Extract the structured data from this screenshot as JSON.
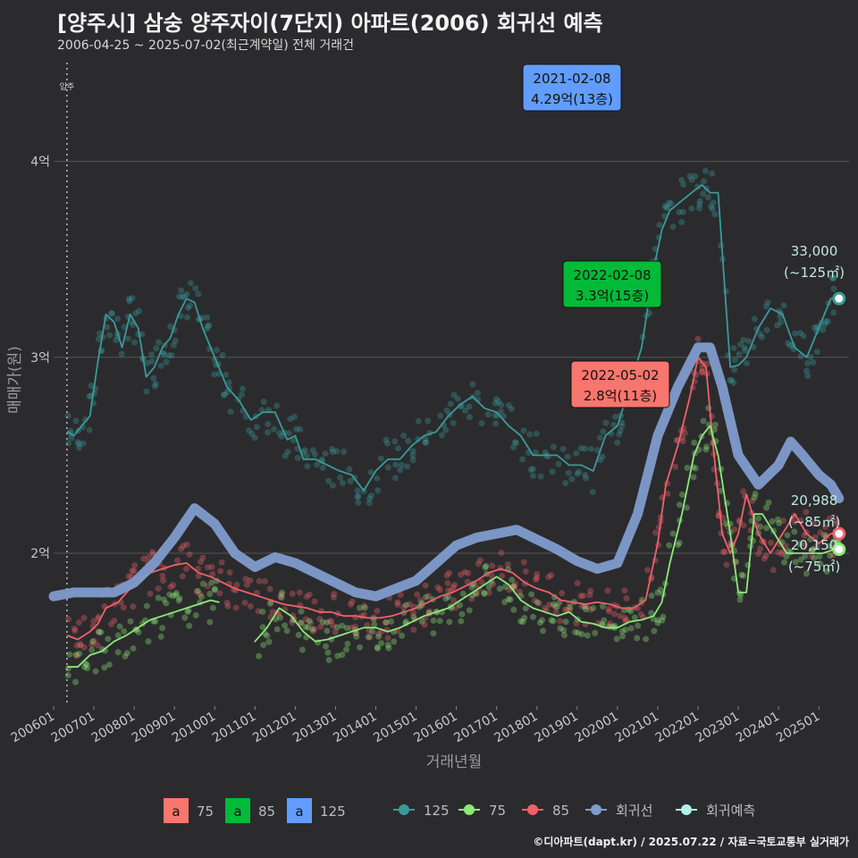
{
  "header": {
    "title": "[양주시] 삼숭 양주자이(7단지) 아파트(2006) 회귀선 예측",
    "subtitle": "2006-04-25 ~ 2025-07-02(최근계약일) 전체 거래건"
  },
  "footer": "©디아파트(dapt.kr) / 2025.07.22 / 자료=국토교통부 실거래가",
  "colors": {
    "s125": "#3a9a9a",
    "s85": "#f0606a",
    "s75": "#8ee87a",
    "regression": "#7f9ccc",
    "pred": "#aef0ea",
    "ann75": "#f8766d",
    "ann85": "#00ba38",
    "ann125": "#619cff"
  },
  "chart_data": {
    "type": "line",
    "title": "[양주시] 삼숭 양주자이(7단지) 아파트(2006) 회귀선 예측",
    "xlabel": "거래년월",
    "ylabel": "매매가(원)",
    "xlim": [
      2006.0,
      2025.75
    ],
    "ylim": [
      1.22,
      4.55
    ],
    "x_ticks": [
      "200601",
      "200701",
      "200801",
      "200901",
      "201001",
      "201101",
      "201201",
      "201301",
      "201401",
      "201501",
      "201601",
      "201701",
      "201801",
      "201901",
      "202001",
      "202101",
      "202201",
      "202301",
      "202401",
      "202501"
    ],
    "y_ticks": [
      {
        "value": 2,
        "label": "2억"
      },
      {
        "value": 3,
        "label": "3억"
      },
      {
        "value": 4,
        "label": "4억"
      }
    ],
    "move_in_marker": {
      "x": 2006.33,
      "label": "입주"
    },
    "series": [
      {
        "name": "125",
        "color_key": "s125",
        "x": [
          2006.35,
          2006.5,
          2006.7,
          2006.9,
          2007.1,
          2007.3,
          2007.5,
          2007.7,
          2007.9,
          2008.1,
          2008.3,
          2008.5,
          2008.7,
          2008.9,
          2009.1,
          2009.3,
          2009.5,
          2009.7,
          2009.9,
          2010.1,
          2010.3,
          2010.6,
          2010.9,
          2011.2,
          2011.5,
          2011.8,
          2012.0,
          2012.2,
          2012.5,
          2012.8,
          2013.1,
          2013.4,
          2013.7,
          2014.0,
          2014.3,
          2014.6,
          2014.9,
          2015.2,
          2015.5,
          2015.8,
          2016.1,
          2016.4,
          2016.7,
          2017.0,
          2017.3,
          2017.6,
          2017.9,
          2018.2,
          2018.5,
          2018.8,
          2019.1,
          2019.4,
          2019.7,
          2020.0,
          2020.3,
          2020.6,
          2020.9,
          2021.1,
          2021.3,
          2021.6,
          2021.9,
          2022.1,
          2022.3,
          2022.5,
          2022.8,
          2023.0,
          2023.2,
          2023.5,
          2023.8,
          2024.1,
          2024.4,
          2024.7,
          2024.9,
          2025.1,
          2025.3,
          2025.45
        ],
        "values": [
          2.62,
          2.6,
          2.65,
          2.7,
          2.98,
          3.22,
          3.18,
          3.05,
          3.22,
          3.15,
          2.9,
          2.95,
          3.05,
          3.1,
          3.22,
          3.3,
          3.28,
          3.15,
          3.05,
          2.95,
          2.85,
          2.78,
          2.68,
          2.72,
          2.72,
          2.58,
          2.6,
          2.48,
          2.48,
          2.45,
          2.42,
          2.4,
          2.32,
          2.42,
          2.48,
          2.48,
          2.55,
          2.6,
          2.62,
          2.7,
          2.76,
          2.8,
          2.74,
          2.72,
          2.65,
          2.6,
          2.5,
          2.5,
          2.5,
          2.45,
          2.45,
          2.42,
          2.6,
          2.65,
          2.85,
          3.05,
          3.45,
          3.65,
          3.75,
          3.8,
          3.85,
          3.88,
          3.84,
          3.84,
          2.95,
          2.96,
          3.0,
          3.15,
          3.25,
          3.22,
          3.05,
          3.0,
          3.1,
          3.2,
          3.3,
          3.3
        ]
      },
      {
        "name": "85",
        "color_key": "s85",
        "x": [
          2006.35,
          2006.6,
          2006.9,
          2007.1,
          2007.3,
          2007.6,
          2007.9,
          2008.1,
          2008.4,
          2008.7,
          2009.0,
          2009.3,
          2009.6,
          2009.9,
          2010.2,
          2010.5,
          2010.8,
          2011.1,
          2011.4,
          2011.7,
          2012.0,
          2012.3,
          2012.6,
          2012.9,
          2013.2,
          2013.5,
          2013.8,
          2014.1,
          2014.4,
          2014.7,
          2015.0,
          2015.3,
          2015.6,
          2015.9,
          2016.2,
          2016.5,
          2016.8,
          2017.1,
          2017.4,
          2017.7,
          2018.0,
          2018.3,
          2018.6,
          2018.9,
          2019.2,
          2019.5,
          2019.8,
          2020.1,
          2020.4,
          2020.7,
          2021.0,
          2021.2,
          2021.5,
          2021.8,
          2022.0,
          2022.2,
          2022.4,
          2022.6,
          2022.8,
          2023.0,
          2023.2,
          2023.5,
          2023.8,
          2024.1,
          2024.4,
          2024.7,
          2025.0,
          2025.3,
          2025.5
        ],
        "values": [
          1.58,
          1.56,
          1.6,
          1.64,
          1.72,
          1.75,
          1.82,
          1.86,
          1.9,
          1.92,
          1.94,
          1.95,
          1.9,
          1.88,
          1.85,
          1.82,
          1.8,
          1.78,
          1.76,
          1.74,
          1.73,
          1.72,
          1.7,
          1.7,
          1.68,
          1.68,
          1.67,
          1.67,
          1.68,
          1.7,
          1.72,
          1.75,
          1.78,
          1.8,
          1.83,
          1.86,
          1.9,
          1.92,
          1.9,
          1.85,
          1.82,
          1.8,
          1.76,
          1.75,
          1.74,
          1.75,
          1.74,
          1.72,
          1.72,
          1.76,
          2.05,
          2.35,
          2.55,
          2.8,
          3.0,
          2.95,
          2.5,
          2.1,
          2.0,
          2.1,
          2.3,
          2.1,
          2.0,
          2.1,
          2.2,
          2.1,
          2.05,
          2.1,
          2.1
        ]
      },
      {
        "name": "75",
        "color_key": "s75",
        "x": [
          2006.35,
          2006.6,
          2006.9,
          2007.2,
          2007.5,
          2007.8,
          2008.1,
          2008.4,
          2008.7,
          2009.0,
          2009.3,
          2009.6,
          2009.9,
          2010.1,
          null,
          2011.0,
          2011.3,
          2011.6,
          2011.9,
          2012.2,
          2012.5,
          2012.8,
          2013.1,
          2013.4,
          2013.7,
          2014.0,
          2014.3,
          2014.6,
          2014.9,
          2015.2,
          2015.5,
          2015.8,
          2016.1,
          2016.4,
          2016.7,
          2017.0,
          2017.3,
          2017.6,
          2017.9,
          2018.2,
          2018.5,
          2018.8,
          2019.1,
          2019.4,
          2019.7,
          2020.0,
          2020.3,
          2020.6,
          2020.9,
          2021.1,
          2021.3,
          2021.6,
          2021.9,
          2022.1,
          2022.3,
          2022.5,
          2022.8,
          2023.0,
          2023.2,
          2023.4,
          2023.6,
          2023.9,
          2024.2,
          2024.5,
          2024.8,
          2025.1,
          2025.4,
          2025.5
        ],
        "values": [
          1.42,
          1.42,
          1.48,
          1.5,
          1.55,
          1.58,
          1.62,
          1.66,
          1.68,
          1.7,
          1.72,
          1.74,
          1.76,
          1.75,
          null,
          1.55,
          1.62,
          1.72,
          1.68,
          1.6,
          1.55,
          1.56,
          1.58,
          1.6,
          1.62,
          1.62,
          1.6,
          1.62,
          1.65,
          1.68,
          1.7,
          1.72,
          1.76,
          1.8,
          1.84,
          1.88,
          1.84,
          1.76,
          1.72,
          1.7,
          1.68,
          1.7,
          1.65,
          1.64,
          1.62,
          1.62,
          1.65,
          1.66,
          1.68,
          1.75,
          1.95,
          2.2,
          2.5,
          2.6,
          2.65,
          2.5,
          2.1,
          1.8,
          1.8,
          2.2,
          2.2,
          2.1,
          2.0,
          2.0,
          2.0,
          2.0,
          2.02,
          2.02
        ]
      },
      {
        "name": "회귀선",
        "color_key": "regression",
        "x": [
          2006.0,
          2006.5,
          2007.0,
          2007.5,
          2008.0,
          2008.5,
          2009.0,
          2009.5,
          2010.0,
          2010.5,
          2011.0,
          2011.5,
          2012.0,
          2012.5,
          2013.0,
          2013.5,
          2014.0,
          2014.5,
          2015.0,
          2015.5,
          2016.0,
          2016.5,
          2017.0,
          2017.5,
          2018.0,
          2018.5,
          2019.0,
          2019.5,
          2020.0,
          2020.5,
          2021.0,
          2021.5,
          2022.0,
          2022.3,
          2022.6,
          2023.0,
          2023.5,
          2024.0,
          2024.3,
          2024.6,
          2025.0,
          2025.3,
          2025.5
        ],
        "values": [
          1.78,
          1.8,
          1.8,
          1.8,
          1.85,
          1.95,
          2.08,
          2.23,
          2.15,
          2.0,
          1.93,
          1.98,
          1.95,
          1.9,
          1.85,
          1.8,
          1.78,
          1.82,
          1.86,
          1.95,
          2.04,
          2.08,
          2.1,
          2.12,
          2.07,
          2.02,
          1.96,
          1.92,
          1.95,
          2.2,
          2.6,
          2.85,
          3.05,
          3.05,
          2.85,
          2.5,
          2.35,
          2.45,
          2.57,
          2.5,
          2.4,
          2.35,
          2.28
        ]
      }
    ],
    "annotations": [
      {
        "date": "2021-02-08",
        "label": "4.29억(13층)",
        "x": 2021.1,
        "y": 4.29,
        "color_key": "ann125"
      },
      {
        "date": "2022-02-08",
        "label": "3.3억(15층)",
        "x": 2022.1,
        "y": 3.3,
        "color_key": "ann85"
      },
      {
        "date": "2022-05-02",
        "label": "2.8억(11층)",
        "x": 2022.35,
        "y": 2.8,
        "color_key": "ann75"
      }
    ],
    "end_labels": [
      {
        "value": "33,000",
        "area": "(~125㎡)",
        "x": 2025.5,
        "y": 3.3,
        "color_key": "s125"
      },
      {
        "value": "20,988",
        "area": "(~85㎡)",
        "x": 2025.5,
        "y": 2.1,
        "color_key": "s85"
      },
      {
        "value": "20,150",
        "area": "(~75㎡)",
        "x": 2025.5,
        "y": 2.02,
        "color_key": "s75"
      }
    ]
  },
  "legend": {
    "fill_items": [
      {
        "letter": "a",
        "label": "75",
        "color_key": "ann75"
      },
      {
        "letter": "a",
        "label": "85",
        "color_key": "ann85"
      },
      {
        "letter": "a",
        "label": "125",
        "color_key": "ann125"
      }
    ],
    "line_items": [
      {
        "label": "125",
        "color_key": "s125"
      },
      {
        "label": "75",
        "color_key": "s75"
      },
      {
        "label": "85",
        "color_key": "s85"
      },
      {
        "label": "회귀선",
        "color_key": "regression"
      },
      {
        "label": "회귀예측",
        "color_key": "pred"
      }
    ]
  }
}
